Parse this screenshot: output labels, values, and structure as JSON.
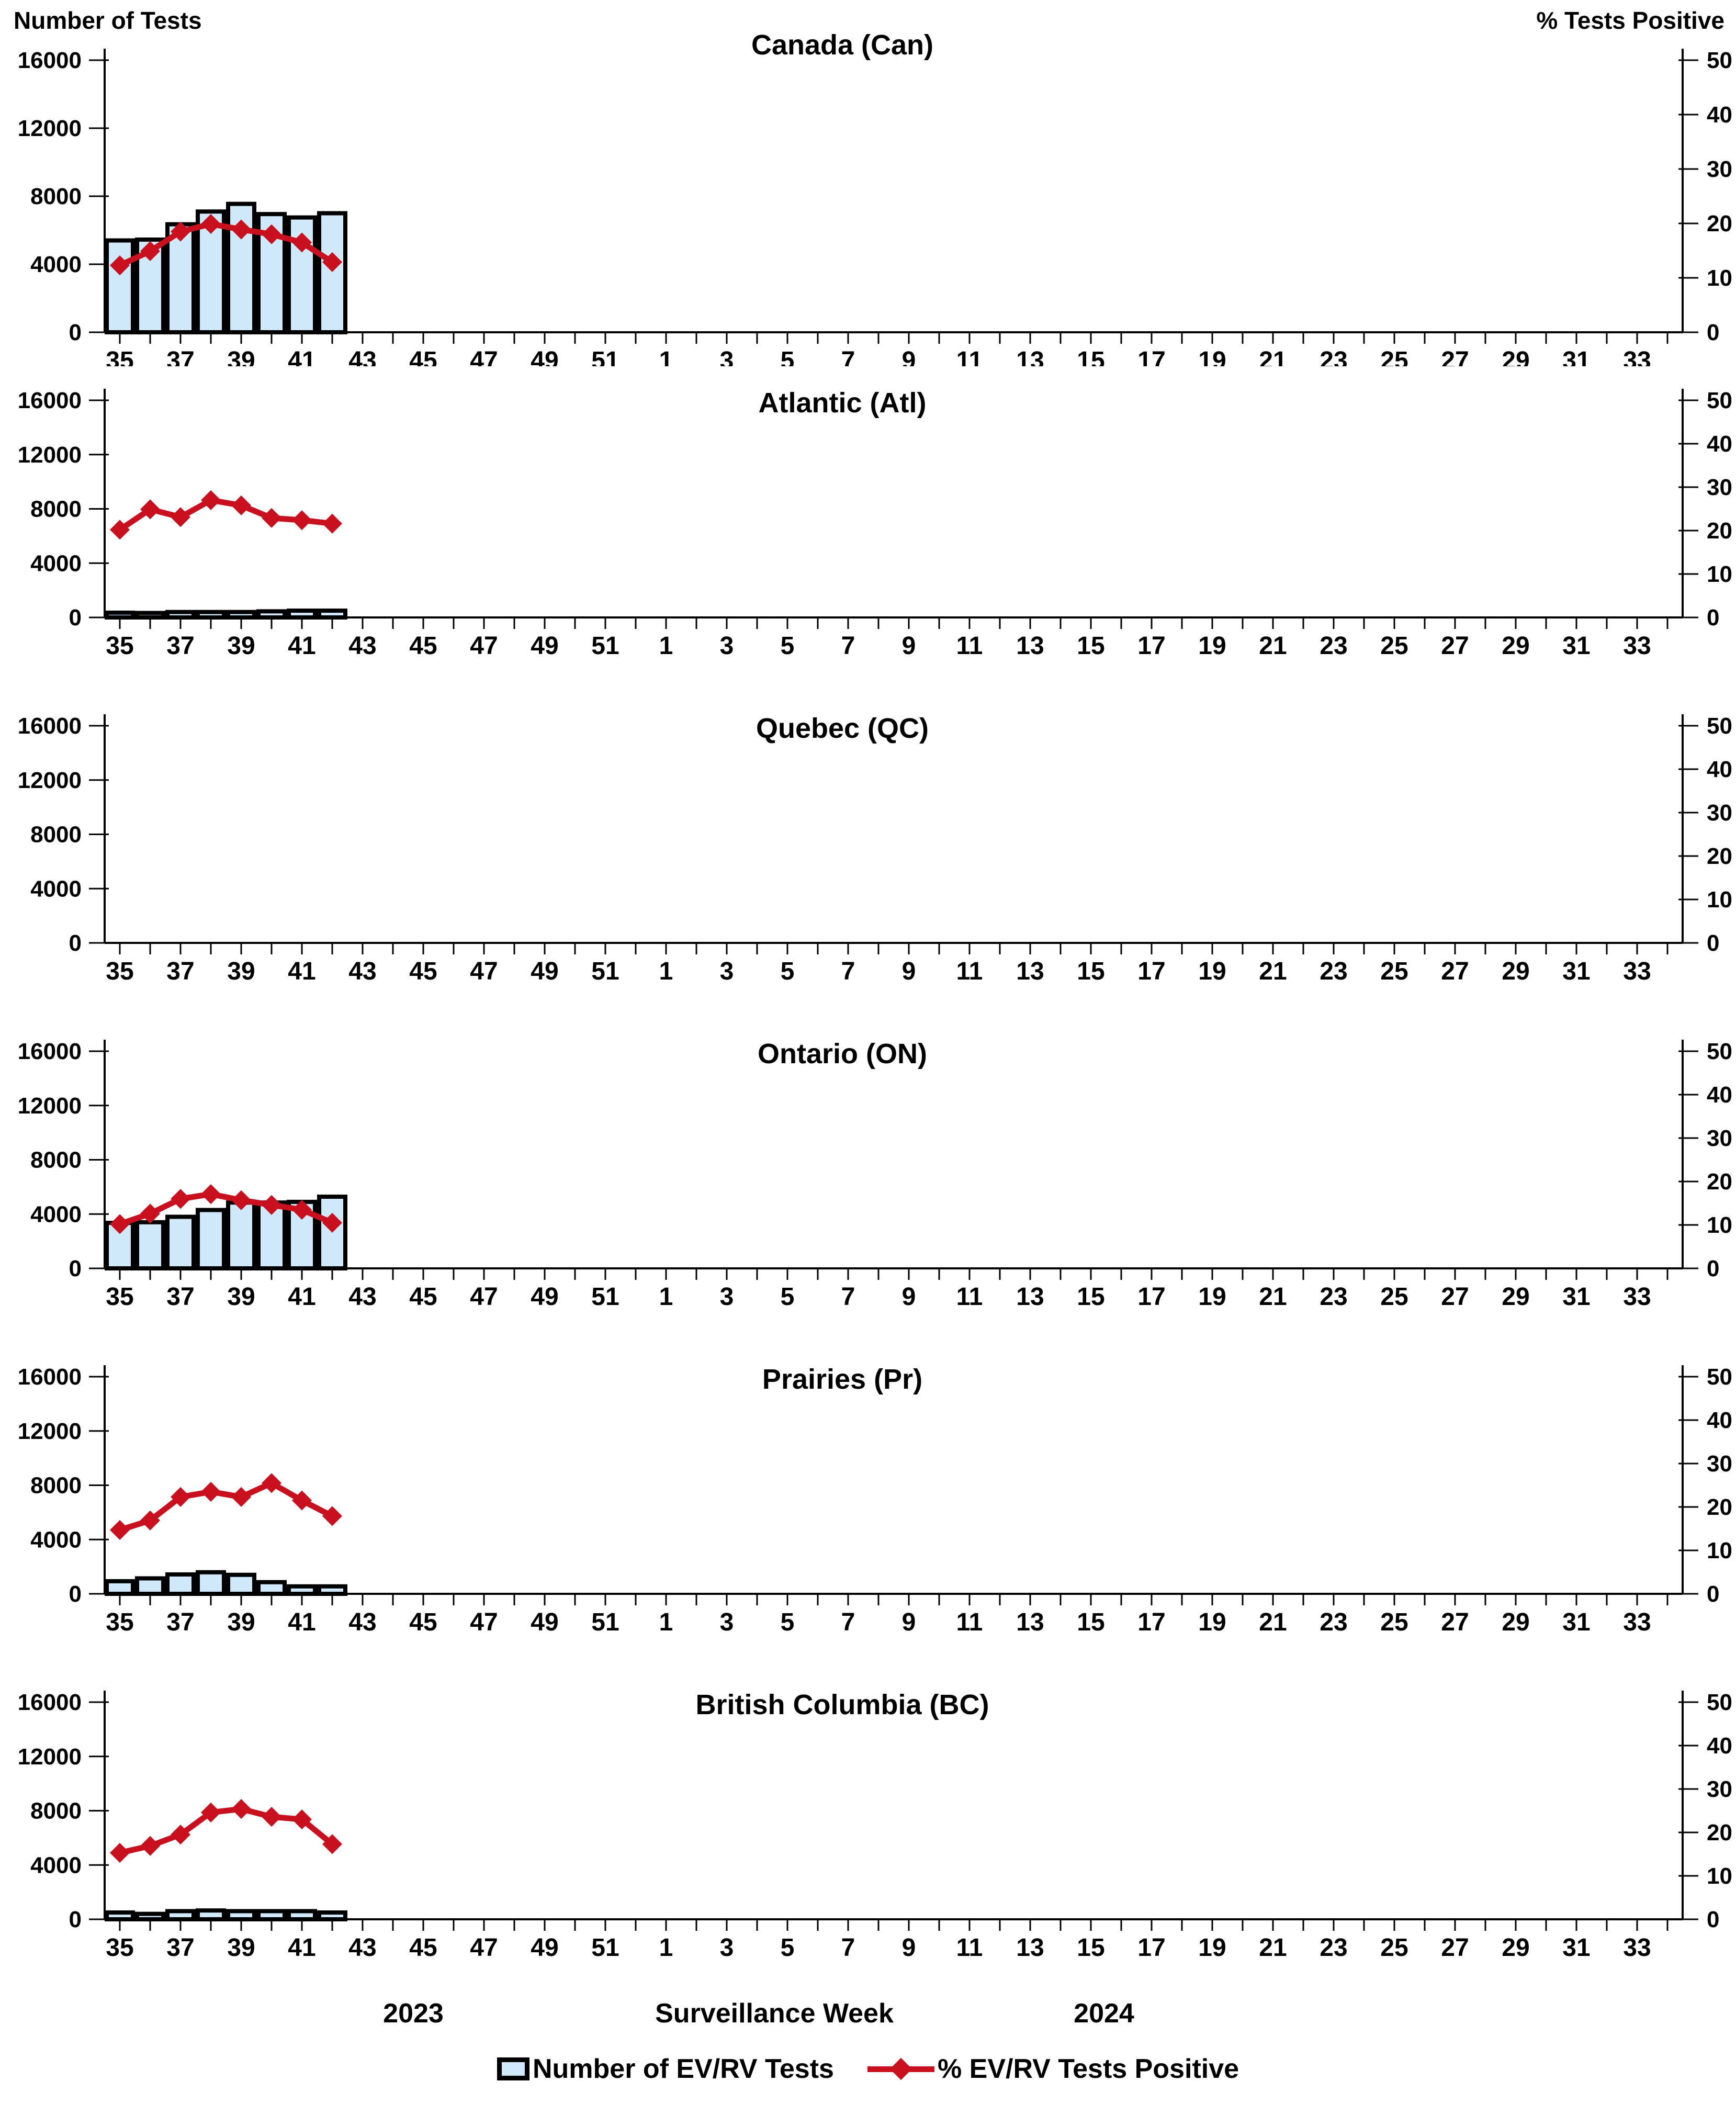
{
  "header": {
    "left_axis_title": "Number of Tests",
    "right_axis_title": "% Tests Positive"
  },
  "footer": {
    "year_left": "2023",
    "x_axis_title": "Surveillance Week",
    "year_right": "2024"
  },
  "legend": {
    "bar_label": "Number of EV/RV Tests",
    "line_label": "% EV/RV Tests Positive"
  },
  "colors": {
    "bar_fill": "#CFE8FA",
    "bar_stroke": "#000000",
    "line": "#C8101E",
    "axis": "#000000"
  },
  "axes": {
    "left_ticks": [
      0,
      4000,
      8000,
      12000,
      16000
    ],
    "left_max": 16000,
    "right_ticks": [
      0,
      10,
      20,
      30,
      40,
      50
    ],
    "right_max": 50,
    "week_slots": 52,
    "x_tick_labels": [
      "35",
      "37",
      "39",
      "41",
      "43",
      "45",
      "47",
      "49",
      "51",
      "1",
      "3",
      "5",
      "7",
      "9",
      "11",
      "13",
      "15",
      "17",
      "19",
      "21",
      "23",
      "25",
      "27",
      "29",
      "31",
      "33"
    ],
    "grid": false,
    "legend_position": "bottom"
  },
  "chart_data": [
    {
      "type": "bar+line",
      "title": "Canada (Can)",
      "xlabel": "Surveillance Week",
      "ylabel_left": "Number of Tests",
      "ylabel_right": "% Tests Positive",
      "weeks": [
        35,
        36,
        37,
        38,
        39,
        40,
        41,
        42
      ],
      "series": [
        {
          "name": "Number of EV/RV Tests",
          "axis": "left",
          "values": [
            5400,
            5450,
            6350,
            7100,
            7550,
            6950,
            6750,
            7000
          ]
        },
        {
          "name": "% EV/RV Tests Positive",
          "axis": "right",
          "values": [
            12.3,
            14.9,
            18.5,
            19.9,
            18.9,
            18.0,
            16.5,
            12.9
          ]
        }
      ]
    },
    {
      "type": "bar+line",
      "title": "Atlantic (Atl)",
      "weeks": [
        35,
        36,
        37,
        38,
        39,
        40,
        41,
        42
      ],
      "series": [
        {
          "name": "Number of EV/RV Tests",
          "axis": "left",
          "values": [
            350,
            330,
            400,
            400,
            400,
            450,
            500,
            500
          ]
        },
        {
          "name": "% EV/RV Tests Positive",
          "axis": "right",
          "values": [
            20.2,
            24.9,
            23.1,
            27.0,
            25.8,
            22.9,
            22.4,
            21.6
          ]
        }
      ]
    },
    {
      "type": "bar+line",
      "title": "Quebec (QC)",
      "weeks": [],
      "series": [
        {
          "name": "Number of EV/RV Tests",
          "axis": "left",
          "values": []
        },
        {
          "name": "% EV/RV Tests Positive",
          "axis": "right",
          "values": []
        }
      ]
    },
    {
      "type": "bar+line",
      "title": "Ontario (ON)",
      "weeks": [
        35,
        36,
        37,
        38,
        39,
        40,
        41,
        42
      ],
      "series": [
        {
          "name": "Number of EV/RV Tests",
          "axis": "left",
          "values": [
            3350,
            3400,
            3800,
            4300,
            4850,
            4850,
            4900,
            5280
          ]
        },
        {
          "name": "% EV/RV Tests Positive",
          "axis": "right",
          "values": [
            10.2,
            12.6,
            16.0,
            17.1,
            15.7,
            14.6,
            13.5,
            10.5
          ]
        }
      ]
    },
    {
      "type": "bar+line",
      "title": "Prairies (Pr)",
      "weeks": [
        35,
        36,
        37,
        38,
        39,
        40,
        41,
        42
      ],
      "series": [
        {
          "name": "Number of EV/RV Tests",
          "axis": "left",
          "values": [
            930,
            1140,
            1430,
            1590,
            1400,
            860,
            550,
            550
          ]
        },
        {
          "name": "% EV/RV Tests Positive",
          "axis": "right",
          "values": [
            14.7,
            16.9,
            22.3,
            23.5,
            22.3,
            25.5,
            21.5,
            17.9
          ]
        }
      ]
    },
    {
      "type": "bar+line",
      "title": "British Columbia (BC)",
      "weeks": [
        35,
        36,
        37,
        38,
        39,
        40,
        41,
        42
      ],
      "series": [
        {
          "name": "Number of EV/RV Tests",
          "axis": "left",
          "values": [
            500,
            400,
            600,
            650,
            600,
            600,
            600,
            500
          ]
        },
        {
          "name": "% EV/RV Tests Positive",
          "axis": "right",
          "values": [
            15.3,
            16.9,
            19.5,
            24.6,
            25.4,
            23.6,
            23.0,
            17.3
          ]
        }
      ]
    }
  ]
}
